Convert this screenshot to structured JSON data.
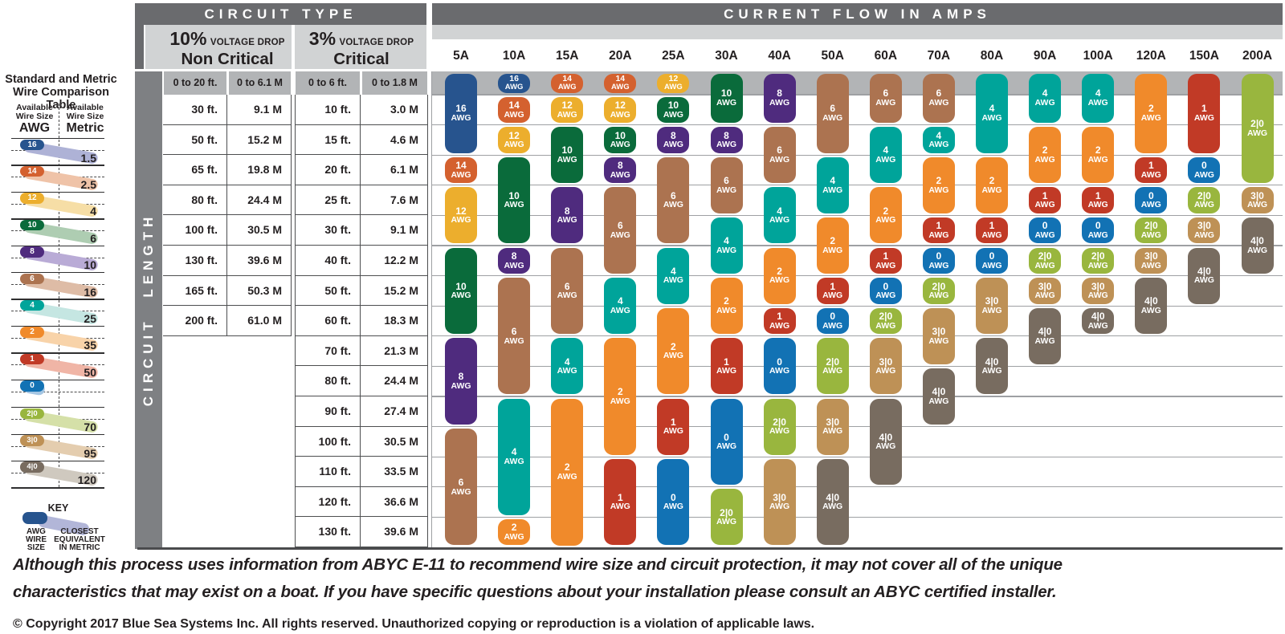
{
  "colors": {
    "dark_bar": "#6A6B6E",
    "light_header": "#D1D3D4",
    "row_band": "#B2B4B6",
    "circuit_length_bar": "#7E8083",
    "grid_line": "#9EA0A3",
    "cell_border": "#4D4E50",
    "bottom_border": "#4A4B4D",
    "text_dark": "#231F20"
  },
  "gauge_colors": {
    "16": "#27548E",
    "14": "#D4612F",
    "12": "#ECAE2D",
    "10": "#0A6B3B",
    "8": "#4F2B7E",
    "6": "#AC7350",
    "4": "#00A49A",
    "2": "#F08A2B",
    "1": "#C13A26",
    "0": "#1272B4",
    "2|0": "#99B63E",
    "3|0": "#BE9156",
    "4|0": "#786C60"
  },
  "header": {
    "circuit_type": "CIRCUIT TYPE",
    "current_flow": "CURRENT FLOW IN AMPS"
  },
  "voltage": {
    "pct10": "10%",
    "pct3": "3%",
    "voltage_drop": "VOLTAGE DROP",
    "non_critical": "Non Critical",
    "critical": "Critical"
  },
  "circuit_length": "CIRCUIT LENGTH",
  "awg_suffix": "AWG",
  "comparison": {
    "title_line1": "Standard and Metric",
    "title_line2": "Wire Comparison Table",
    "left_header_line1": "Available",
    "left_header_line2": "Wire Size",
    "left_header_unit": "AWG",
    "right_header_line1": "Available",
    "right_header_line2": "Wire Size",
    "right_header_unit": "Metric",
    "pairs": [
      {
        "awg": "16",
        "metric": "1.5",
        "color": "#27548E",
        "band": "#AEB2D6"
      },
      {
        "awg": "14",
        "metric": "2.5",
        "color": "#D4612F",
        "band": "#EFC3A8"
      },
      {
        "awg": "12",
        "metric": "4",
        "color": "#ECAE2D",
        "band": "#F6DEA6"
      },
      {
        "awg": "10",
        "metric": "6",
        "color": "#0A6B3B",
        "band": "#AECDB2"
      },
      {
        "awg": "8",
        "metric": "10",
        "color": "#4F2B7E",
        "band": "#B9ABD6"
      },
      {
        "awg": "6",
        "metric": "16",
        "color": "#AC7350",
        "band": "#DEBCA6"
      },
      {
        "awg": "4",
        "metric": "25",
        "color": "#00A49A",
        "band": "#C5E6E2"
      },
      {
        "awg": "2",
        "metric": "35",
        "color": "#F08A2B",
        "band": "#F8D3A9"
      },
      {
        "awg": "1",
        "metric": "50",
        "color": "#C13A26",
        "band": "#F0B5A6"
      },
      {
        "awg": "0",
        "metric": "",
        "color": "#1272B4",
        "band": "#A5C6E3"
      },
      {
        "awg": "2|0",
        "metric": "70",
        "color": "#99B63E",
        "band": "#D5E0A8"
      },
      {
        "awg": "3|0",
        "metric": "95",
        "color": "#BE9156",
        "band": "#E4CDAF"
      },
      {
        "awg": "4|0",
        "metric": "120",
        "color": "#786C60",
        "band": "#CFC9BF"
      }
    ],
    "key": {
      "title": "KEY",
      "awg_caption": [
        "AWG",
        "WIRE",
        "SIZE"
      ],
      "metric_caption": [
        "CLOSEST",
        "EQUIVALENT",
        "IN METRIC"
      ],
      "pill_color": "#27548E",
      "band_color": "#B2B6D8"
    }
  },
  "chart_data": {
    "type": "table",
    "title": "CURRENT FLOW IN AMPS",
    "row_labels_10pct": {
      "ft": [
        "0 to 20 ft.",
        "30 ft.",
        "50 ft.",
        "65 ft.",
        "80 ft.",
        "100 ft.",
        "130 ft.",
        "165 ft.",
        "200 ft."
      ],
      "m": [
        "0 to 6.1 M",
        "9.1 M",
        "15.2 M",
        "19.8 M",
        "24.4 M",
        "30.5 M",
        "39.6 M",
        "50.3 M",
        "61.0 M"
      ]
    },
    "row_labels_3pct": {
      "ft": [
        "0 to 6 ft.",
        "10 ft.",
        "15 ft.",
        "20 ft.",
        "25 ft.",
        "30 ft.",
        "40 ft.",
        "50 ft.",
        "60 ft.",
        "70 ft.",
        "80 ft.",
        "90 ft.",
        "100 ft.",
        "110 ft.",
        "120 ft.",
        "130 ft."
      ],
      "m": [
        "0 to 1.8 M",
        "3.0 M",
        "4.6 M",
        "6.1 M",
        "7.6 M",
        "9.1 M",
        "12.2 M",
        "15.2 M",
        "18.3 M",
        "21.3 M",
        "24.4 M",
        "27.4 M",
        "30.5 M",
        "33.5 M",
        "36.6 M",
        "39.6 M"
      ]
    },
    "amp_columns": [
      {
        "amp": "5A",
        "segments": [
          [
            0,
            2,
            "16"
          ],
          [
            3,
            3,
            "14"
          ],
          [
            4,
            5,
            "12"
          ],
          [
            6,
            8,
            "10"
          ],
          [
            9,
            11,
            "8"
          ],
          [
            12,
            15,
            "6"
          ]
        ]
      },
      {
        "amp": "10A",
        "segments": [
          [
            0,
            0,
            "16"
          ],
          [
            1,
            1,
            "14"
          ],
          [
            2,
            2,
            "12"
          ],
          [
            3,
            5,
            "10"
          ],
          [
            6,
            6,
            "8"
          ],
          [
            7,
            10,
            "6"
          ],
          [
            11,
            14,
            "4"
          ],
          [
            15,
            15,
            "2"
          ]
        ]
      },
      {
        "amp": "15A",
        "segments": [
          [
            0,
            0,
            "14"
          ],
          [
            1,
            1,
            "12"
          ],
          [
            2,
            3,
            "10"
          ],
          [
            4,
            5,
            "8"
          ],
          [
            6,
            8,
            "6"
          ],
          [
            9,
            10,
            "4"
          ],
          [
            11,
            15,
            "2"
          ]
        ]
      },
      {
        "amp": "20A",
        "segments": [
          [
            0,
            0,
            "14"
          ],
          [
            1,
            1,
            "12"
          ],
          [
            2,
            2,
            "10"
          ],
          [
            3,
            3,
            "8"
          ],
          [
            4,
            6,
            "6"
          ],
          [
            7,
            8,
            "4"
          ],
          [
            9,
            12,
            "2"
          ],
          [
            13,
            15,
            "1"
          ]
        ]
      },
      {
        "amp": "25A",
        "segments": [
          [
            0,
            0,
            "12"
          ],
          [
            1,
            1,
            "10"
          ],
          [
            2,
            2,
            "8"
          ],
          [
            3,
            5,
            "6"
          ],
          [
            6,
            7,
            "4"
          ],
          [
            8,
            10,
            "2"
          ],
          [
            11,
            12,
            "1"
          ],
          [
            13,
            15,
            "0"
          ]
        ]
      },
      {
        "amp": "30A",
        "segments": [
          [
            0,
            1,
            "10"
          ],
          [
            2,
            2,
            "8"
          ],
          [
            3,
            4,
            "6"
          ],
          [
            5,
            6,
            "4"
          ],
          [
            7,
            8,
            "2"
          ],
          [
            9,
            10,
            "1"
          ],
          [
            11,
            13,
            "0"
          ],
          [
            14,
            15,
            "2|0"
          ]
        ]
      },
      {
        "amp": "40A",
        "segments": [
          [
            0,
            1,
            "8"
          ],
          [
            2,
            3,
            "6"
          ],
          [
            4,
            5,
            "4"
          ],
          [
            6,
            7,
            "2"
          ],
          [
            8,
            8,
            "1"
          ],
          [
            9,
            10,
            "0"
          ],
          [
            11,
            12,
            "2|0"
          ],
          [
            13,
            15,
            "3|0"
          ]
        ]
      },
      {
        "amp": "50A",
        "segments": [
          [
            0,
            2,
            "6"
          ],
          [
            3,
            4,
            "4"
          ],
          [
            5,
            6,
            "2"
          ],
          [
            7,
            7,
            "1"
          ],
          [
            8,
            8,
            "0"
          ],
          [
            9,
            10,
            "2|0"
          ],
          [
            11,
            12,
            "3|0"
          ],
          [
            13,
            15,
            "4|0"
          ]
        ]
      },
      {
        "amp": "60A",
        "segments": [
          [
            0,
            1,
            "6"
          ],
          [
            2,
            3,
            "4"
          ],
          [
            4,
            5,
            "2"
          ],
          [
            6,
            6,
            "1"
          ],
          [
            7,
            7,
            "0"
          ],
          [
            8,
            8,
            "2|0"
          ],
          [
            9,
            10,
            "3|0"
          ],
          [
            11,
            13,
            "4|0"
          ]
        ]
      },
      {
        "amp": "70A",
        "segments": [
          [
            0,
            1,
            "6"
          ],
          [
            2,
            2,
            "4"
          ],
          [
            3,
            4,
            "2"
          ],
          [
            5,
            5,
            "1"
          ],
          [
            6,
            6,
            "0"
          ],
          [
            7,
            7,
            "2|0"
          ],
          [
            8,
            9,
            "3|0"
          ],
          [
            10,
            11,
            "4|0"
          ]
        ]
      },
      {
        "amp": "80A",
        "segments": [
          [
            0,
            2,
            "4"
          ],
          [
            3,
            4,
            "2"
          ],
          [
            5,
            5,
            "1"
          ],
          [
            6,
            6,
            "0"
          ],
          [
            7,
            8,
            "3|0"
          ],
          [
            9,
            10,
            "4|0"
          ]
        ]
      },
      {
        "amp": "90A",
        "segments": [
          [
            0,
            1,
            "4"
          ],
          [
            2,
            3,
            "2"
          ],
          [
            4,
            4,
            "1"
          ],
          [
            5,
            5,
            "0"
          ],
          [
            6,
            6,
            "2|0"
          ],
          [
            7,
            7,
            "3|0"
          ],
          [
            8,
            9,
            "4|0"
          ]
        ]
      },
      {
        "amp": "100A",
        "segments": [
          [
            0,
            1,
            "4"
          ],
          [
            2,
            3,
            "2"
          ],
          [
            4,
            4,
            "1"
          ],
          [
            5,
            5,
            "0"
          ],
          [
            6,
            6,
            "2|0"
          ],
          [
            7,
            7,
            "3|0"
          ],
          [
            8,
            8,
            "4|0"
          ]
        ]
      },
      {
        "amp": "120A",
        "segments": [
          [
            0,
            2,
            "2"
          ],
          [
            3,
            3,
            "1"
          ],
          [
            4,
            4,
            "0"
          ],
          [
            5,
            5,
            "2|0"
          ],
          [
            6,
            6,
            "3|0"
          ],
          [
            7,
            8,
            "4|0"
          ]
        ]
      },
      {
        "amp": "150A",
        "segments": [
          [
            0,
            2,
            "1"
          ],
          [
            3,
            3,
            "0"
          ],
          [
            4,
            4,
            "2|0"
          ],
          [
            5,
            5,
            "3|0"
          ],
          [
            6,
            7,
            "4|0"
          ]
        ]
      },
      {
        "amp": "200A",
        "segments": [
          [
            0,
            3,
            "2|0"
          ],
          [
            4,
            4,
            "3|0"
          ],
          [
            5,
            6,
            "4|0"
          ]
        ]
      }
    ]
  },
  "footer": {
    "disclaimer_line1": "Although this process uses information from ABYC E-11 to recommend wire size and circuit protection, it may not cover all of the unique",
    "disclaimer_line2": "characteristics that may exist on a boat. If you have specific questions about your installation please consult an ABYC certified installer.",
    "copyright": "© Copyright 2017 Blue Sea Systems Inc. All rights reserved. Unauthorized copying or reproduction is a violation of applicable laws."
  }
}
